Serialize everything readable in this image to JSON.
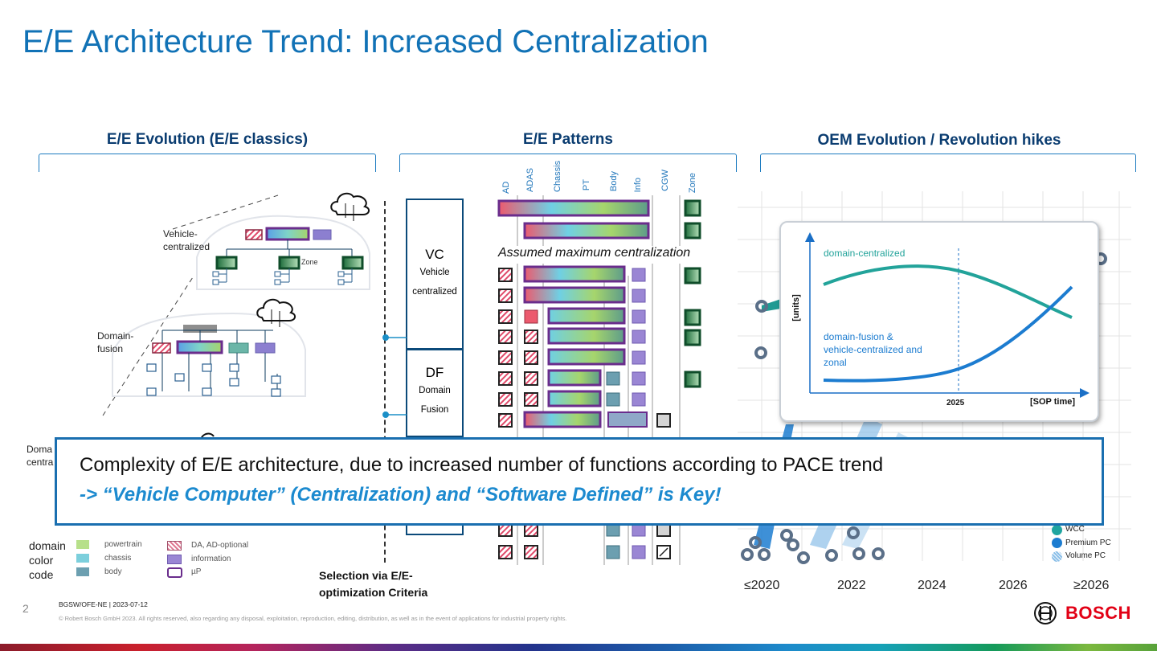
{
  "slide": {
    "title": "E/E Architecture Trend: Increased Centralization",
    "page_number": "2",
    "footer_dept": "BGSW/OFE-NE | 2023-07-12",
    "footer_copyright": "© Robert Bosch GmbH 2023. All rights reserved, also regarding any disposal, exploitation, reproduction, editing, distribution, as well as in the event of applications for industrial property rights.",
    "brand": "BOSCH",
    "brand_color": "#e20015",
    "accent_color": "#1172b6"
  },
  "sections": {
    "evolution_title": "E/E Evolution (E/E classics)",
    "patterns_title": "E/E Patterns",
    "oem_title": "OEM Evolution / Revolution hikes"
  },
  "evolution": {
    "vehicle_label": "Vehicle-\ncentralized",
    "domain_fusion_label": "Domain-\nfusion",
    "domain_central_label": "Doma\ncentra",
    "zone_label": "Zone",
    "legend_title_1": "domain",
    "legend_title_2": "color",
    "legend_title_3": "code",
    "legend_items": [
      "powertrain",
      "chassis",
      "body",
      "DA, AD-optional",
      "information",
      "µP"
    ]
  },
  "patterns": {
    "columns": [
      "AD",
      "ADAS",
      "Chassis",
      "PT",
      "Body",
      "Info",
      "CGW",
      "Zone"
    ],
    "vc_title": "VC",
    "vc_sub1": "Vehicle",
    "vc_sub2": "centralized",
    "df_title": "DF",
    "df_sub1": "Domain",
    "df_sub2": "Fusion",
    "assumed_max": "Assumed maximum centralization",
    "selection_1": "Selection via E/E-",
    "selection_2": "optimization Criteria"
  },
  "oem": {
    "years": [
      "≤2020",
      "2022",
      "2024",
      "2026",
      "≥2026"
    ],
    "legend": [
      "WCC",
      "Premium PC",
      "Volume PC"
    ],
    "inset": {
      "ylabel": "[units]",
      "xlabel": "[SOP time]",
      "marker_year": "2025",
      "series_1": "domain-centralized",
      "series_2_l1": "domain-fusion &",
      "series_2_l2": "vehicle-centralized and",
      "series_2_l3": "zonal"
    }
  },
  "callout": {
    "line1": "Complexity of E/E architecture, due to increased number of functions according to PACE trend",
    "line2": "-> “Vehicle Computer” (Centralization) and “Software Defined” is Key!"
  },
  "chart_data": {
    "type": "line",
    "xlabel": "[SOP time]",
    "ylabel": "[units]",
    "x": [
      "",
      "2025",
      ""
    ],
    "series": [
      {
        "name": "domain-centralized",
        "trend": "rise then decline"
      },
      {
        "name": "domain-fusion & vehicle-centralized and zonal",
        "trend": "flat then steep rise"
      }
    ],
    "colors": [
      "#22a39a",
      "#1c7cd0"
    ]
  }
}
